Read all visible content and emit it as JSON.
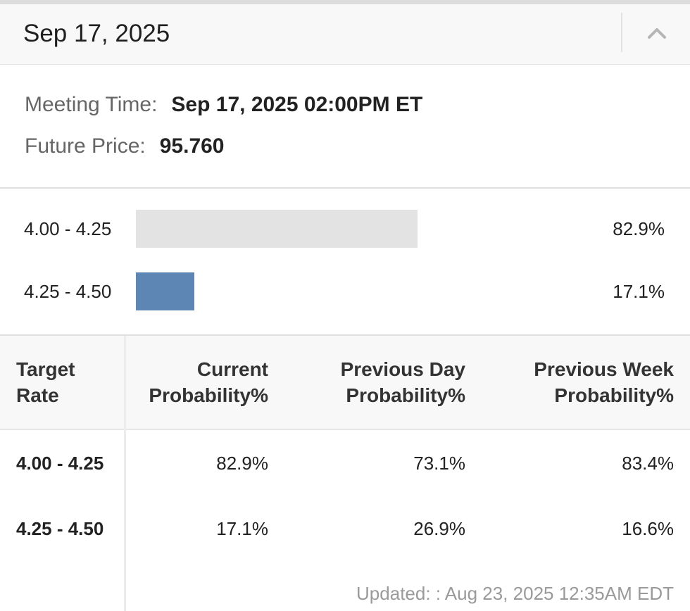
{
  "header": {
    "date": "Sep 17, 2025",
    "collapse_icon": "chevron-up-icon"
  },
  "meeting": {
    "time_label": "Meeting Time:",
    "time_value": "Sep 17, 2025 02:00PM ET",
    "price_label": "Future Price:",
    "price_value": "95.760"
  },
  "bars": [
    {
      "range": "4.00 - 4.25",
      "percent_text": "82.9%",
      "value": 82.9,
      "color": "#e3e3e3"
    },
    {
      "range": "4.25 - 4.50",
      "percent_text": "17.1%",
      "value": 17.1,
      "color": "#5d86b5"
    }
  ],
  "table": {
    "headers": [
      [
        "Target",
        "Rate"
      ],
      [
        "Current",
        "Probability%"
      ],
      [
        "Previous Day",
        "Probability%"
      ],
      [
        "Previous Week",
        "Probability%"
      ]
    ],
    "rows": [
      {
        "target": "4.00 - 4.25",
        "current": "82.9%",
        "prev_day": "73.1%",
        "prev_week": "83.4%"
      },
      {
        "target": "4.25 - 4.50",
        "current": "17.1%",
        "prev_day": "26.9%",
        "prev_week": "16.6%"
      }
    ],
    "updated": "Updated: : Aug 23, 2025 12:35AM EDT"
  }
}
